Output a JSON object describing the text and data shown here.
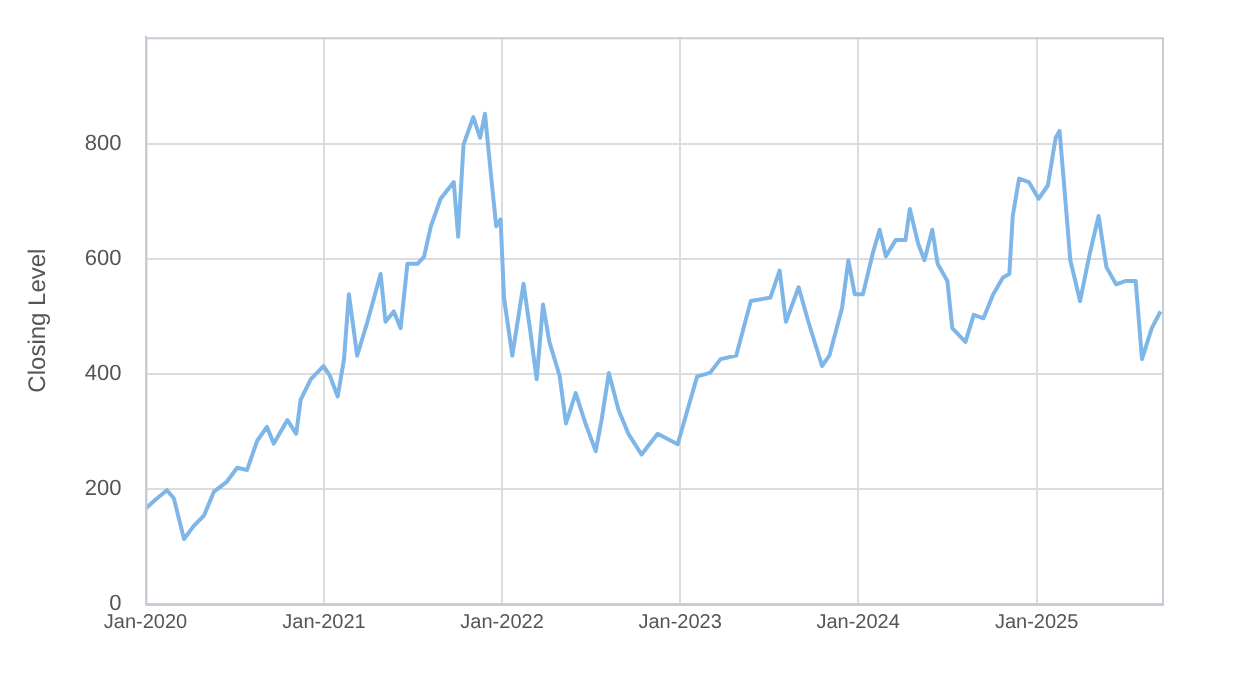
{
  "chart_data": {
    "type": "line",
    "ylabel": "Closing Level",
    "x": [
      "2020-01-01",
      "2020-01-25",
      "2020-02-14",
      "2020-02-28",
      "2020-03-20",
      "2020-04-09",
      "2020-04-30",
      "2020-05-20",
      "2020-06-16",
      "2020-07-07",
      "2020-07-27",
      "2020-08-17",
      "2020-09-06",
      "2020-09-20",
      "2020-10-18",
      "2020-11-05",
      "2020-11-14",
      "2020-12-05",
      "2020-12-31",
      "2021-01-13",
      "2021-01-29",
      "2021-02-11",
      "2021-02-21",
      "2021-03-10",
      "2021-03-31",
      "2021-04-27",
      "2021-05-07",
      "2021-05-24",
      "2021-06-07",
      "2021-06-21",
      "2021-07-12",
      "2021-07-25",
      "2021-08-08",
      "2021-08-28",
      "2021-09-24",
      "2021-10-03",
      "2021-10-14",
      "2021-11-03",
      "2021-11-17",
      "2021-11-27",
      "2021-12-10",
      "2021-12-20",
      "2021-12-29",
      "2022-01-05",
      "2022-01-22",
      "2022-02-14",
      "2022-02-27",
      "2022-03-13",
      "2022-03-26",
      "2022-04-08",
      "2022-04-29",
      "2022-05-12",
      "2022-06-01",
      "2022-06-21",
      "2022-07-12",
      "2022-07-24",
      "2022-08-08",
      "2022-08-28",
      "2022-09-17",
      "2022-10-14",
      "2022-11-16",
      "2022-12-27",
      "2023-01-16",
      "2023-02-05",
      "2023-03-03",
      "2023-03-25",
      "2023-04-26",
      "2023-05-26",
      "2023-07-05",
      "2023-07-24",
      "2023-08-06",
      "2023-09-01",
      "2023-09-21",
      "2023-10-19",
      "2023-11-03",
      "2023-11-29",
      "2023-12-12",
      "2023-12-25",
      "2024-01-11",
      "2024-01-31",
      "2024-02-14",
      "2024-02-27",
      "2024-03-18",
      "2024-04-07",
      "2024-04-16",
      "2024-05-03",
      "2024-05-16",
      "2024-06-01",
      "2024-06-12",
      "2024-07-02",
      "2024-07-12",
      "2024-08-08",
      "2024-08-25",
      "2024-09-14",
      "2024-10-04",
      "2024-10-24",
      "2024-11-06",
      "2024-11-13",
      "2024-11-26",
      "2024-12-16",
      "2025-01-05",
      "2025-01-24",
      "2025-02-09",
      "2025-02-17",
      "2025-02-27",
      "2025-03-11",
      "2025-03-31",
      "2025-04-20",
      "2025-05-08",
      "2025-05-24",
      "2025-06-13",
      "2025-07-03",
      "2025-07-23",
      "2025-08-05",
      "2025-08-25",
      "2025-09-12"
    ],
    "series": [
      {
        "color": "#7eb6e8",
        "values": [
          166,
          184,
          198,
          184,
          113,
          136,
          154,
          195,
          213,
          237,
          233,
          284,
          308,
          279,
          320,
          296,
          355,
          391,
          414,
          397,
          361,
          426,
          539,
          432,
          491,
          574,
          491,
          509,
          480,
          592,
          592,
          604,
          657,
          705,
          734,
          639,
          799,
          847,
          811,
          853,
          740,
          657,
          669,
          533,
          432,
          557,
          480,
          391,
          521,
          456,
          397,
          314,
          367,
          314,
          266,
          320,
          402,
          337,
          296,
          260,
          296,
          278,
          337,
          396,
          402,
          426,
          432,
          527,
          533,
          580,
          491,
          551,
          491,
          414,
          432,
          515,
          598,
          539,
          539,
          610,
          651,
          605,
          633,
          633,
          687,
          627,
          598,
          651,
          592,
          562,
          480,
          456,
          503,
          497,
          539,
          568,
          574,
          675,
          740,
          734,
          705,
          728,
          811,
          823,
          722,
          598,
          527,
          610,
          675,
          586,
          556,
          562,
          562,
          426,
          480,
          509
        ]
      }
    ],
    "xlim": [
      "2020-01-01",
      "2025-09-15"
    ],
    "xticks": [
      {
        "value": "2020-01",
        "label": "Jan-2020"
      },
      {
        "value": "2021-01",
        "label": "Jan-2021"
      },
      {
        "value": "2022-01",
        "label": "Jan-2022"
      },
      {
        "value": "2023-01",
        "label": "Jan-2023"
      },
      {
        "value": "2024-01",
        "label": "Jan-2024"
      },
      {
        "value": "2025-01",
        "label": "Jan-2025"
      }
    ],
    "ylim": [
      0,
      986
    ],
    "yticks": [
      0,
      200,
      400,
      600,
      800
    ],
    "grid": true,
    "legend": false,
    "marker": "none",
    "line_style": "solid"
  }
}
